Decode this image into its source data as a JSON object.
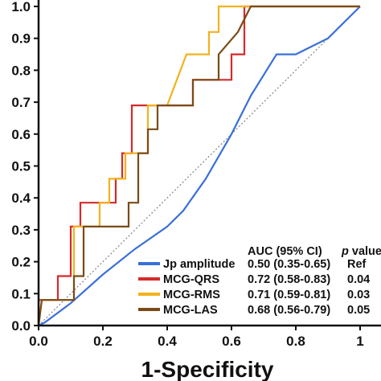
{
  "chart_data": {
    "type": "line",
    "title": "",
    "xlabel": "1-Specificity",
    "ylabel": "",
    "xlim": [
      0,
      1
    ],
    "ylim": [
      0,
      1
    ],
    "x_ticks": [
      "0.0",
      "0.2",
      "0.4",
      "0.6",
      "0.8",
      "1"
    ],
    "y_ticks": [
      "0.0",
      "0.1",
      "0.2",
      "0.3",
      "0.4",
      "0.5",
      "0.6",
      "0.7",
      "0.8",
      "0.9",
      "1.0"
    ],
    "grid": false,
    "reference_line": {
      "style": "dotted",
      "color": "#8c8c8c",
      "from": [
        0,
        0
      ],
      "to": [
        1,
        1
      ]
    },
    "legend": {
      "placement": "bottom-right",
      "header": {
        "auc": "AUC (95% CI)",
        "p_prefix": "p",
        "p_suffix": " value"
      }
    },
    "series": [
      {
        "name": "Jp amplitude",
        "auc": "0.50 (0.35-0.65)",
        "p": "Ref",
        "color": "#3a6fd8",
        "points": [
          [
            0,
            0
          ],
          [
            0.02,
            0.01
          ],
          [
            0.1,
            0.07
          ],
          [
            0.2,
            0.16
          ],
          [
            0.3,
            0.24
          ],
          [
            0.4,
            0.31
          ],
          [
            0.45,
            0.36
          ],
          [
            0.52,
            0.46
          ],
          [
            0.6,
            0.6
          ],
          [
            0.66,
            0.72
          ],
          [
            0.74,
            0.85
          ],
          [
            0.8,
            0.85
          ],
          [
            0.9,
            0.9
          ],
          [
            1,
            1
          ]
        ]
      },
      {
        "name": "MCG-QRS",
        "auc": "0.72 (0.58-0.83)",
        "p": "0.04",
        "color": "#d62a2a",
        "points": [
          [
            0,
            0
          ],
          [
            0,
            0.08
          ],
          [
            0.06,
            0.08
          ],
          [
            0.06,
            0.155
          ],
          [
            0.1,
            0.155
          ],
          [
            0.1,
            0.31
          ],
          [
            0.13,
            0.31
          ],
          [
            0.13,
            0.385
          ],
          [
            0.24,
            0.385
          ],
          [
            0.24,
            0.46
          ],
          [
            0.26,
            0.46
          ],
          [
            0.26,
            0.54
          ],
          [
            0.29,
            0.54
          ],
          [
            0.29,
            0.69
          ],
          [
            0.48,
            0.69
          ],
          [
            0.48,
            0.77
          ],
          [
            0.6,
            0.77
          ],
          [
            0.6,
            0.85
          ],
          [
            0.64,
            0.85
          ],
          [
            0.64,
            1
          ],
          [
            1,
            1
          ]
        ]
      },
      {
        "name": "MCG-RMS",
        "auc": "0.71 (0.59-0.81)",
        "p": "0.03",
        "color": "#f3b21e",
        "points": [
          [
            0,
            0
          ],
          [
            0.01,
            0.08
          ],
          [
            0.11,
            0.08
          ],
          [
            0.11,
            0.31
          ],
          [
            0.19,
            0.31
          ],
          [
            0.19,
            0.385
          ],
          [
            0.22,
            0.385
          ],
          [
            0.22,
            0.46
          ],
          [
            0.27,
            0.46
          ],
          [
            0.27,
            0.54
          ],
          [
            0.34,
            0.54
          ],
          [
            0.34,
            0.69
          ],
          [
            0.4,
            0.69
          ],
          [
            0.43,
            0.77
          ],
          [
            0.46,
            0.85
          ],
          [
            0.53,
            0.85
          ],
          [
            0.53,
            0.92
          ],
          [
            0.56,
            0.92
          ],
          [
            0.56,
            1
          ],
          [
            1,
            1
          ]
        ]
      },
      {
        "name": "MCG-LAS",
        "auc": "0.68 (0.56-0.79)",
        "p": "0.05",
        "color": "#7a4a18",
        "points": [
          [
            0,
            0
          ],
          [
            0.01,
            0.08
          ],
          [
            0.11,
            0.08
          ],
          [
            0.11,
            0.155
          ],
          [
            0.14,
            0.155
          ],
          [
            0.14,
            0.31
          ],
          [
            0.28,
            0.31
          ],
          [
            0.28,
            0.385
          ],
          [
            0.31,
            0.385
          ],
          [
            0.31,
            0.54
          ],
          [
            0.34,
            0.54
          ],
          [
            0.34,
            0.615
          ],
          [
            0.37,
            0.615
          ],
          [
            0.37,
            0.69
          ],
          [
            0.48,
            0.69
          ],
          [
            0.48,
            0.77
          ],
          [
            0.56,
            0.77
          ],
          [
            0.56,
            0.85
          ],
          [
            0.62,
            0.92
          ],
          [
            0.66,
            1
          ],
          [
            1,
            1
          ]
        ]
      }
    ]
  }
}
